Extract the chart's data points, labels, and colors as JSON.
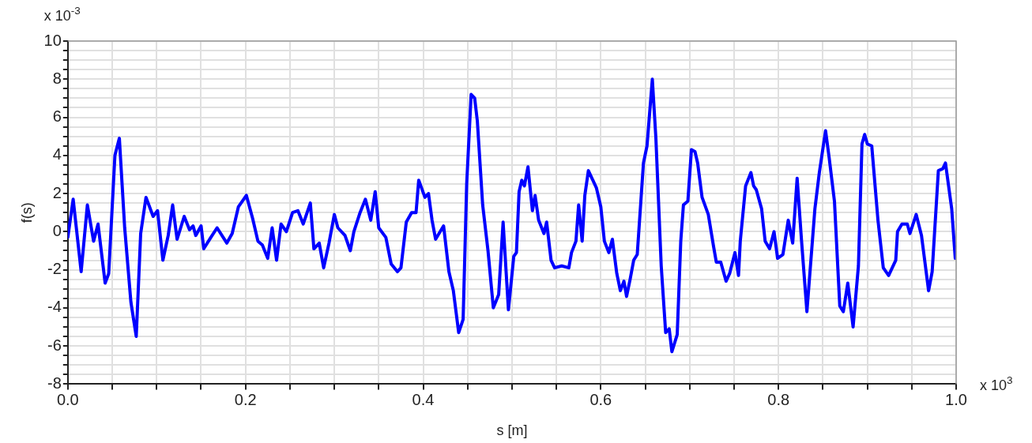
{
  "chart_data": {
    "type": "line",
    "xlabel": "s [m]",
    "ylabel": "f(s)",
    "annotations": [
      "x 10$^{-3}$",
      "x 10$^{3}$"
    ],
    "x": [
      0,
      0.006,
      0.015,
      0.022,
      0.029,
      0.034,
      0.042,
      0.046,
      0.053,
      0.058,
      0.064,
      0.071,
      0.077,
      0.082,
      0.088,
      0.096,
      0.101,
      0.107,
      0.113,
      0.118,
      0.123,
      0.131,
      0.137,
      0.141,
      0.144,
      0.15,
      0.153,
      0.161,
      0.168,
      0.179,
      0.185,
      0.192,
      0.201,
      0.208,
      0.214,
      0.219,
      0.225,
      0.23,
      0.235,
      0.24,
      0.246,
      0.253,
      0.259,
      0.265,
      0.273,
      0.277,
      0.283,
      0.288,
      0.294,
      0.3,
      0.304,
      0.312,
      0.318,
      0.322,
      0.329,
      0.335,
      0.341,
      0.346,
      0.35,
      0.358,
      0.364,
      0.371,
      0.375,
      0.381,
      0.387,
      0.392,
      0.395,
      0.402,
      0.406,
      0.41,
      0.414,
      0.423,
      0.429,
      0.434,
      0.44,
      0.445,
      0.449,
      0.454,
      0.458,
      0.461,
      0.467,
      0.473,
      0.479,
      0.485,
      0.49,
      0.496,
      0.502,
      0.505,
      0.508,
      0.511,
      0.514,
      0.518,
      0.523,
      0.526,
      0.53,
      0.536,
      0.539,
      0.544,
      0.548,
      0.556,
      0.564,
      0.567,
      0.572,
      0.575,
      0.579,
      0.582,
      0.586,
      0.591,
      0.595,
      0.6,
      0.604,
      0.609,
      0.613,
      0.618,
      0.622,
      0.626,
      0.629,
      0.633,
      0.637,
      0.641,
      0.648,
      0.652,
      0.658,
      0.662,
      0.668,
      0.673,
      0.677,
      0.68,
      0.686,
      0.69,
      0.693,
      0.698,
      0.702,
      0.706,
      0.709,
      0.714,
      0.721,
      0.727,
      0.73,
      0.735,
      0.741,
      0.745,
      0.751,
      0.755,
      0.757,
      0.763,
      0.769,
      0.772,
      0.775,
      0.781,
      0.785,
      0.79,
      0.795,
      0.799,
      0.805,
      0.811,
      0.816,
      0.821,
      0.826,
      0.832,
      0.841,
      0.846,
      0.853,
      0.857,
      0.863,
      0.869,
      0.873,
      0.878,
      0.884,
      0.89,
      0.894,
      0.897,
      0.9,
      0.905,
      0.912,
      0.918,
      0.924,
      0.932,
      0.934,
      0.939,
      0.945,
      0.948,
      0.955,
      0.961,
      0.969,
      0.973,
      0.98,
      0.985,
      0.988,
      0.995,
      0.999,
      1.0
    ],
    "series": [
      {
        "color": "#0000ff",
        "values": [
          -0.3,
          1.7,
          -2.1,
          1.4,
          -0.5,
          0.4,
          -2.7,
          -2.2,
          4.0,
          4.9,
          0.2,
          -3.7,
          -5.5,
          -0.1,
          1.8,
          0.8,
          1.1,
          -1.5,
          -0.2,
          1.4,
          -0.4,
          0.8,
          0.1,
          0.3,
          -0.2,
          0.3,
          -0.9,
          -0.3,
          0.2,
          -0.6,
          -0.1,
          1.3,
          1.9,
          0.7,
          -0.5,
          -0.7,
          -1.4,
          0.2,
          -1.5,
          0.4,
          0.0,
          1.0,
          1.1,
          0.4,
          1.5,
          -0.9,
          -0.6,
          -1.9,
          -0.6,
          0.9,
          0.2,
          -0.2,
          -1.0,
          0.0,
          1.0,
          1.7,
          0.6,
          2.1,
          0.2,
          -0.3,
          -1.7,
          -2.1,
          -1.9,
          0.5,
          1.0,
          1.0,
          2.7,
          1.8,
          2.0,
          0.6,
          -0.4,
          0.3,
          -2.1,
          -3.1,
          -5.3,
          -4.6,
          2.5,
          7.2,
          7.0,
          5.8,
          1.4,
          -1.0,
          -4.0,
          -3.3,
          0.5,
          -4.1,
          -1.3,
          -1.1,
          2.1,
          2.7,
          2.4,
          3.4,
          1.1,
          1.9,
          0.6,
          -0.1,
          0.5,
          -1.5,
          -1.9,
          -1.8,
          -1.9,
          -1.1,
          -0.5,
          1.4,
          -0.5,
          1.9,
          3.2,
          2.7,
          2.3,
          1.3,
          -0.5,
          -1.1,
          -0.4,
          -2.2,
          -3.1,
          -2.6,
          -3.4,
          -2.5,
          -1.5,
          -1.2,
          3.6,
          4.5,
          8.0,
          4.9,
          -1.8,
          -5.3,
          -5.1,
          -6.3,
          -5.4,
          -0.5,
          1.4,
          1.6,
          4.3,
          4.2,
          3.6,
          1.8,
          0.9,
          -0.8,
          -1.6,
          -1.6,
          -2.6,
          -2.2,
          -1.1,
          -2.3,
          -0.5,
          2.4,
          3.1,
          2.4,
          2.2,
          1.2,
          -0.5,
          -0.9,
          0.0,
          -1.4,
          -1.2,
          0.6,
          -0.6,
          2.8,
          -0.5,
          -4.2,
          1.2,
          3.1,
          5.3,
          3.9,
          1.6,
          -3.9,
          -4.2,
          -2.7,
          -5.0,
          -1.8,
          4.6,
          5.1,
          4.6,
          4.5,
          0.6,
          -1.9,
          -2.3,
          -1.5,
          0.0,
          0.4,
          0.4,
          -0.1,
          0.9,
          -0.2,
          -3.1,
          -2.1,
          3.2,
          3.3,
          3.6,
          1.2,
          -1.4,
          -0.8
        ]
      }
    ],
    "xlim": [
      0,
      1.0
    ],
    "xticks": [
      {
        "value": 0,
        "label": "0.0"
      },
      {
        "value": 0.05,
        "label": null
      },
      {
        "value": 0.1,
        "label": null
      },
      {
        "value": 0.15,
        "label": null
      },
      {
        "value": 0.2,
        "label": "0.2"
      },
      {
        "value": 0.25,
        "label": null
      },
      {
        "value": 0.3,
        "label": null
      },
      {
        "value": 0.35,
        "label": null
      },
      {
        "value": 0.4,
        "label": "0.4"
      },
      {
        "value": 0.45,
        "label": null
      },
      {
        "value": 0.5,
        "label": null
      },
      {
        "value": 0.55,
        "label": null
      },
      {
        "value": 0.6,
        "label": "0.6"
      },
      {
        "value": 0.65,
        "label": null
      },
      {
        "value": 0.7,
        "label": null
      },
      {
        "value": 0.75,
        "label": null
      },
      {
        "value": 0.8,
        "label": "0.8"
      },
      {
        "value": 0.85,
        "label": null
      },
      {
        "value": 0.9,
        "label": null
      },
      {
        "value": 0.95,
        "label": null
      },
      {
        "value": 1.0,
        "label": "1.0"
      }
    ],
    "ylim": [
      -8,
      10
    ],
    "yticks": [
      -8,
      {
        "value": -7.5,
        "label": null
      },
      {
        "value": -7,
        "label": null
      },
      {
        "value": -6.5,
        "label": null
      },
      -6,
      {
        "value": -5.5,
        "label": null
      },
      {
        "value": -5,
        "label": null
      },
      {
        "value": -4.5,
        "label": null
      },
      -4,
      {
        "value": -3.5,
        "label": null
      },
      {
        "value": -3,
        "label": null
      },
      {
        "value": -2.5,
        "label": null
      },
      -2,
      {
        "value": -1.5,
        "label": null
      },
      {
        "value": -1,
        "label": null
      },
      {
        "value": -0.5,
        "label": null
      },
      0,
      {
        "value": 0.5,
        "label": null
      },
      {
        "value": 1,
        "label": null
      },
      {
        "value": 1.5,
        "label": null
      },
      2,
      {
        "value": 2.5,
        "label": null
      },
      {
        "value": 3,
        "label": null
      },
      {
        "value": 3.5,
        "label": null
      },
      4,
      {
        "value": 4.5,
        "label": null
      },
      {
        "value": 5,
        "label": null
      },
      {
        "value": 5.5,
        "label": null
      },
      6,
      {
        "value": 6.5,
        "label": null
      },
      {
        "value": 7,
        "label": null
      },
      {
        "value": 7.5,
        "label": null
      },
      8,
      {
        "value": 8.5,
        "label": null
      },
      {
        "value": 9,
        "label": null
      },
      {
        "value": 9.5,
        "label": null
      },
      10
    ],
    "grid": true,
    "legend": false,
    "marker": "none",
    "line_style": "solid"
  }
}
